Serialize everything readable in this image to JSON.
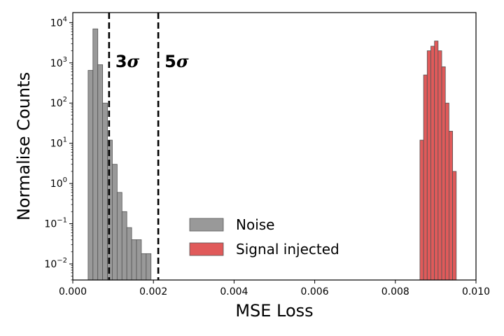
{
  "chart_data": {
    "type": "histogram",
    "xlabel": "MSE Loss",
    "ylabel": "Normalise Counts",
    "yscale": "log",
    "xlim": [
      0.0,
      0.01
    ],
    "ylim_log10": [
      -2.4,
      4.25
    ],
    "xticks": [
      {
        "value": 0.0,
        "label": "0.000"
      },
      {
        "value": 0.002,
        "label": "0.002"
      },
      {
        "value": 0.004,
        "label": "0.004"
      },
      {
        "value": 0.006,
        "label": "0.006"
      },
      {
        "value": 0.008,
        "label": "0.008"
      },
      {
        "value": 0.01,
        "label": "0.010"
      }
    ],
    "yticks": [
      {
        "exp": 4,
        "label_base": "10",
        "label_exp": "4"
      },
      {
        "exp": 3,
        "label_base": "10",
        "label_exp": "3"
      },
      {
        "exp": 2,
        "label_base": "10",
        "label_exp": "2"
      },
      {
        "exp": 1,
        "label_base": "10",
        "label_exp": "1"
      },
      {
        "exp": 0,
        "label_base": "10",
        "label_exp": "0"
      },
      {
        "exp": -1,
        "label_base": "10",
        "label_exp": "−1"
      },
      {
        "exp": -2,
        "label_base": "10",
        "label_exp": "−2"
      }
    ],
    "series": [
      {
        "name": "Noise",
        "color": "#999999",
        "edge_color": "#555555",
        "bins": [
          {
            "x0": 0.00038,
            "x1": 0.0005,
            "value": 650
          },
          {
            "x0": 0.0005,
            "x1": 0.00062,
            "value": 7000
          },
          {
            "x0": 0.00062,
            "x1": 0.00074,
            "value": 900
          },
          {
            "x0": 0.00074,
            "x1": 0.00086,
            "value": 100
          },
          {
            "x0": 0.00086,
            "x1": 0.00098,
            "value": 12
          },
          {
            "x0": 0.00098,
            "x1": 0.0011,
            "value": 3
          },
          {
            "x0": 0.0011,
            "x1": 0.00122,
            "value": 0.6
          },
          {
            "x0": 0.00122,
            "x1": 0.00134,
            "value": 0.2
          },
          {
            "x0": 0.00134,
            "x1": 0.00146,
            "value": 0.08
          },
          {
            "x0": 0.00146,
            "x1": 0.00158,
            "value": 0.04
          },
          {
            "x0": 0.00158,
            "x1": 0.0017,
            "value": 0.04
          },
          {
            "x0": 0.0017,
            "x1": 0.00182,
            "value": 0.018
          },
          {
            "x0": 0.00182,
            "x1": 0.00194,
            "value": 0.018
          }
        ]
      },
      {
        "name": "Signal injected",
        "color": "#e05a5a",
        "edge_color": "#555555",
        "bins": [
          {
            "x0": 0.00861,
            "x1": 0.0087,
            "value": 12
          },
          {
            "x0": 0.0087,
            "x1": 0.00879,
            "value": 500
          },
          {
            "x0": 0.00879,
            "x1": 0.00888,
            "value": 2000
          },
          {
            "x0": 0.00888,
            "x1": 0.00897,
            "value": 2600
          },
          {
            "x0": 0.00897,
            "x1": 0.00906,
            "value": 3500
          },
          {
            "x0": 0.00906,
            "x1": 0.00915,
            "value": 2000
          },
          {
            "x0": 0.00915,
            "x1": 0.00924,
            "value": 800
          },
          {
            "x0": 0.00924,
            "x1": 0.00933,
            "value": 100
          },
          {
            "x0": 0.00933,
            "x1": 0.00942,
            "value": 20
          },
          {
            "x0": 0.00942,
            "x1": 0.00951,
            "value": 2
          }
        ]
      }
    ],
    "thresholds": [
      {
        "name": "3sigma",
        "x": 0.0009,
        "label_num": "3",
        "label_sym": "σ"
      },
      {
        "name": "5sigma",
        "x": 0.00212,
        "label_num": "5",
        "label_sym": "σ"
      }
    ],
    "legend": {
      "position": "lower-center",
      "entries": [
        "Noise",
        "Signal injected"
      ]
    }
  }
}
